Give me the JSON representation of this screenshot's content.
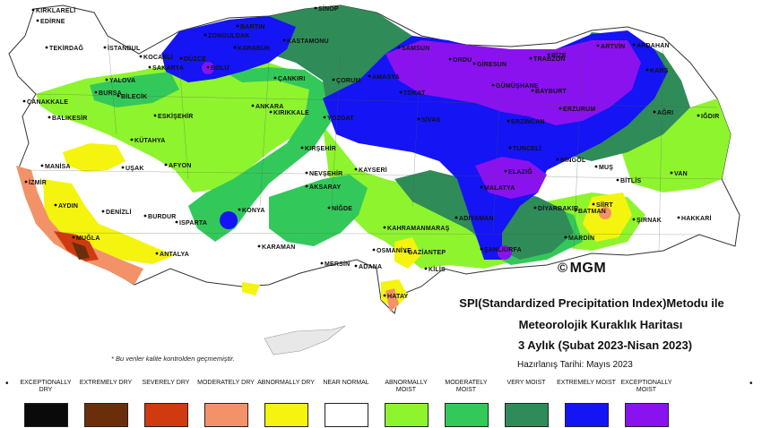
{
  "title_lines": [
    "SPI(Standardized Precipitation Index)Metodu ile",
    "Meteorolojik Kuraklık Haritası",
    "3 Aylık (Şubat 2023-Nisan 2023)"
  ],
  "prepared_date": "Hazırlanış Tarihi: Mayıs 2023",
  "note": "* Bu veriler kalite kontrolden geçmemiştir.",
  "logo": "MGM",
  "legend": [
    {
      "label": "EXCEPTIONALLY DRY",
      "color": "#0a0a0a"
    },
    {
      "label": "EXTREMELY DRY",
      "color": "#6b2e0b"
    },
    {
      "label": "SEVERELY DRY",
      "color": "#cf3a10"
    },
    {
      "label": "MODERATELY DRY",
      "color": "#f39268"
    },
    {
      "label": "ABNORMALLY DRY",
      "color": "#f4f40e"
    },
    {
      "label": "NEAR NORMAL",
      "color": "#ffffff"
    },
    {
      "label": "ABNORMALLY MOIST",
      "color": "#8ef42e"
    },
    {
      "label": "MODERATELY MOIST",
      "color": "#33c95a"
    },
    {
      "label": "VERY MOIST",
      "color": "#2f8c58"
    },
    {
      "label": "EXTREMELY MOIST",
      "color": "#1414f4"
    },
    {
      "label": "EXCEPTIONALLY MOIST",
      "color": "#8a12ee"
    }
  ],
  "cities": [
    "KIRKLARELİ",
    "EDİRNE",
    "TEKİRDAĞ",
    "İSTANBUL",
    "ÇANAKKALE",
    "BALIKESİR",
    "BURSA",
    "YALOVA",
    "SAKARYA",
    "BİLECİK",
    "KOCAELİ",
    "DÜZCE",
    "BOLU",
    "ZONGULDAK",
    "BARTIN",
    "KARABÜK",
    "KASTAMONU",
    "SİNOP",
    "SAMSUN",
    "ORDU",
    "GİRESUN",
    "TRABZON",
    "RİZE",
    "ARTVİN",
    "ARDAHAN",
    "KARS",
    "IĞDIR",
    "AĞRI",
    "ERZURUM",
    "BAYBURT",
    "GÜMÜŞHANE",
    "ERZİNCAN",
    "TUNCELİ",
    "BİNGÖL",
    "MUŞ",
    "BİTLİS",
    "VAN",
    "HAKKARİ",
    "ŞIRNAK",
    "SİİRT",
    "BATMAN",
    "MARDİN",
    "DİYARBAKIR",
    "ELAZIĞ",
    "MALATYA",
    "ADIYAMAN",
    "ŞANLIURFA",
    "GAZİANTEP",
    "KİLİS",
    "HATAY",
    "OSMANİYE",
    "ADANA",
    "MERSİN",
    "KAHRAMANMARAŞ",
    "NİĞDE",
    "AKSARAY",
    "NEVŞEHİR",
    "KAYSERİ",
    "KIRŞEHİR",
    "YOZGAT",
    "SİVAS",
    "TOKAT",
    "AMASYA",
    "ÇORUM",
    "ÇANKIRI",
    "KIRIKKALE",
    "ANKARA",
    "ESKİŞEHİR",
    "KÜTAHYA",
    "AFYON",
    "UŞAK",
    "MANİSA",
    "İZMİR",
    "AYDIN",
    "DENİZLİ",
    "MUĞLA",
    "BURDUR",
    "ISPARTA",
    "ANTALYA",
    "KONYA",
    "KARAMAN"
  ]
}
